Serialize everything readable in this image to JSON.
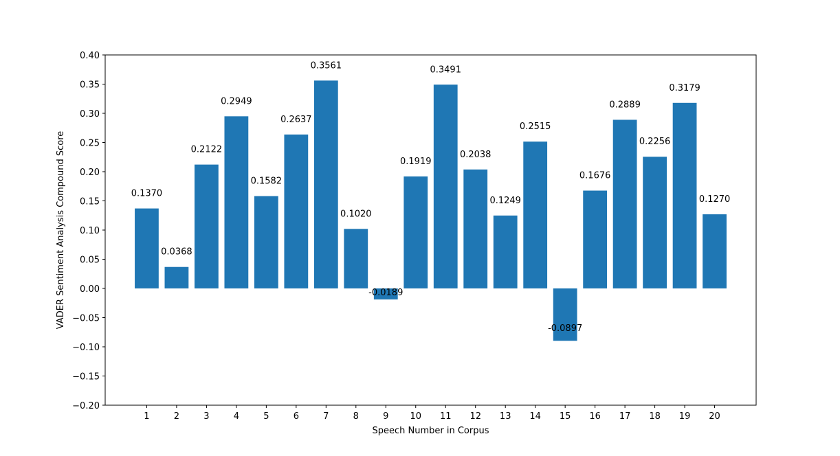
{
  "chart_data": {
    "type": "bar",
    "title": "",
    "xlabel": "Speech Number in Corpus",
    "ylabel": "VADER Sentiment Analysis Compound Score",
    "categories": [
      "1",
      "2",
      "3",
      "4",
      "5",
      "6",
      "7",
      "8",
      "9",
      "10",
      "11",
      "12",
      "13",
      "14",
      "15",
      "16",
      "17",
      "18",
      "19",
      "20"
    ],
    "values": [
      0.137,
      0.0368,
      0.2122,
      0.2949,
      0.1582,
      0.2637,
      0.3561,
      0.102,
      -0.0189,
      0.1919,
      0.3491,
      0.2038,
      0.1249,
      0.2515,
      -0.0897,
      0.1676,
      0.2889,
      0.2256,
      0.3179,
      0.127
    ],
    "data_labels": [
      "0.1370",
      "0.0368",
      "0.2122",
      "0.2949",
      "0.1582",
      "0.2637",
      "0.3561",
      "0.1020",
      "-0.0189",
      "0.1919",
      "0.3491",
      "0.2038",
      "0.1249",
      "0.2515",
      "-0.0897",
      "0.1676",
      "0.2889",
      "0.2256",
      "0.3179",
      "0.1270"
    ],
    "ylim": [
      -0.2,
      0.4
    ],
    "yticks": [
      "0.40",
      "0.35",
      "0.30",
      "0.25",
      "0.20",
      "0.15",
      "0.10",
      "0.05",
      "0.00",
      "−0.05",
      "−0.10",
      "−0.15",
      "−0.20"
    ],
    "ytick_values": [
      0.4,
      0.35,
      0.3,
      0.25,
      0.2,
      0.15,
      0.1,
      0.05,
      0.0,
      -0.05,
      -0.1,
      -0.15,
      -0.2
    ],
    "grid": false,
    "bar_color": "#1f77b4"
  }
}
